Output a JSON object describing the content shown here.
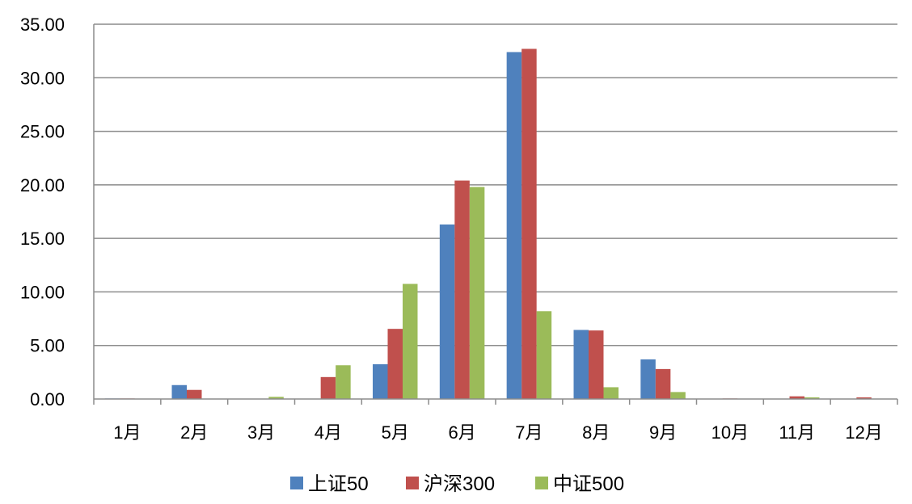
{
  "chart_data": {
    "type": "bar",
    "categories": [
      "1月",
      "2月",
      "3月",
      "4月",
      "5月",
      "6月",
      "7月",
      "8月",
      "9月",
      "10月",
      "11月",
      "12月"
    ],
    "series": [
      {
        "name": "上证50",
        "color": "#4F81BD",
        "values": [
          0.05,
          1.3,
          0.0,
          0.0,
          3.25,
          16.3,
          32.4,
          6.45,
          3.7,
          0.0,
          0.0,
          0.0
        ]
      },
      {
        "name": "沪深300",
        "color": "#C0504D",
        "values": [
          0.05,
          0.85,
          0.0,
          2.05,
          6.55,
          20.4,
          32.7,
          6.4,
          2.8,
          0.05,
          0.25,
          0.15
        ]
      },
      {
        "name": "中证500",
        "color": "#9BBB59",
        "values": [
          0.0,
          0.0,
          0.2,
          3.15,
          10.75,
          19.8,
          8.2,
          1.1,
          0.65,
          0.0,
          0.15,
          0.0
        ]
      }
    ],
    "yticks": [
      "0.00",
      "5.00",
      "10.00",
      "15.00",
      "20.00",
      "25.00",
      "30.00",
      "35.00"
    ],
    "ylim": [
      0,
      35
    ],
    "grid": true,
    "legend_position": "bottom",
    "title": "",
    "xlabel": "",
    "ylabel": ""
  }
}
